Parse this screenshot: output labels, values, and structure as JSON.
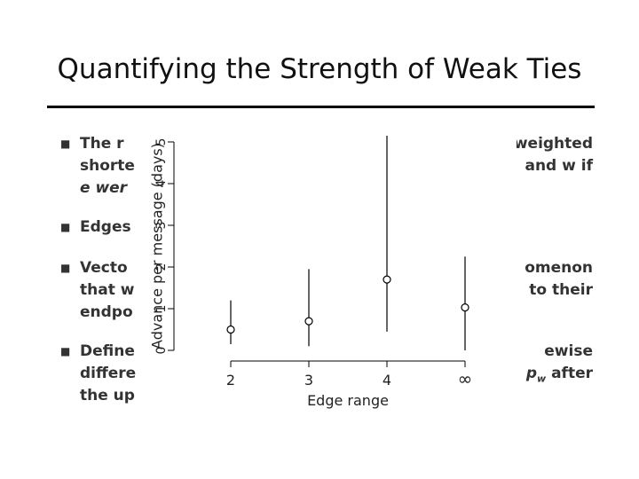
{
  "slide": {
    "title": "Quantifying the Strength of Weak Ties",
    "bullets_left": [
      "The r",
      "shorte",
      "e wer",
      "Edges",
      "Vecto",
      "that w",
      "endpo",
      "Define",
      "differe",
      "the up"
    ],
    "bullets_right": [
      "weighted",
      "and w if",
      "omenon",
      "to their",
      "ewise",
      "p",
      "w",
      "after"
    ]
  },
  "chart_data": {
    "type": "scatter",
    "xlabel": "Edge range",
    "ylabel": "Advance per message (days)",
    "categories": [
      "2",
      "3",
      "4",
      "∞"
    ],
    "y_ticks": [
      "0",
      "1",
      "2",
      "3",
      "4",
      "5"
    ],
    "ylim": [
      0,
      5
    ],
    "points": [
      0.5,
      0.7,
      1.7,
      1.03
    ],
    "error_low": [
      0.15,
      0.1,
      0.45,
      0.0
    ],
    "error_high": [
      1.2,
      1.95,
      5.15,
      2.25
    ],
    "grid": false
  }
}
